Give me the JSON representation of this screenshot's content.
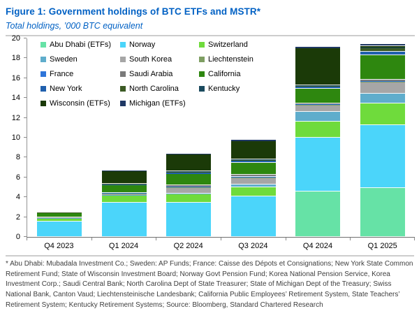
{
  "header": {
    "title": "Figure 1: Government holdings of BTC ETFs and MSTR*",
    "subtitle": "Total holdings, ’000 BTC equivalent"
  },
  "footnote": "* Abu Dhabi: Mubadala Investment Co.; Sweden: AP Funds; France: Caisse des Dépots et Consignations; New York State Common Retirement Fund; State of Wisconsin Investment Board; Norway Govt Pension Fund; Korea National Pension Service, Korea Investment Corp.; Saudi Central Bank; North Carolina Dept of State Treasurer; State of Michigan Dept of the Treasury; Swiss National Bank, Canton Vaud; Liechtensteinische Landesbank; California Public Employees’ Retirement System, State Teachers’ Retirement System; Kentucky Retirement Systems; Source: Bloomberg, Standard Chartered Research",
  "colors": {
    "title_blue": "#0161c4",
    "rule_gray": "#cdcdcd",
    "axis_gray": "#8a8a8a"
  },
  "chart_data": {
    "type": "bar",
    "stacked": true,
    "title": "Government holdings of BTC ETFs and MSTR",
    "ylabel": "'000 BTC equivalent",
    "xlabel": "",
    "ylim": [
      0,
      20
    ],
    "y_ticks": [
      0,
      2,
      4,
      6,
      8,
      10,
      12,
      14,
      16,
      18,
      20
    ],
    "grid": false,
    "legend_position": "top-left-inside",
    "categories": [
      "Q4 2023",
      "Q1 2024",
      "Q2 2024",
      "Q3 2024",
      "Q4 2024",
      "Q1 2025"
    ],
    "series": [
      {
        "name": "Abu Dhabi (ETFs)",
        "color": "#66e2a6",
        "values": [
          0,
          0,
          0,
          0,
          4.6,
          4.9
        ]
      },
      {
        "name": "Norway",
        "color": "#4bd5fa",
        "values": [
          1.55,
          3.45,
          3.45,
          4.1,
          5.4,
          6.35
        ]
      },
      {
        "name": "Switzerland",
        "color": "#6fdb3c",
        "values": [
          0.3,
          0.7,
          0.85,
          0.95,
          1.6,
          2.2
        ]
      },
      {
        "name": "Sweden",
        "color": "#5fadcc",
        "values": [
          0.05,
          0.05,
          0.1,
          0.3,
          1.0,
          1.0
        ]
      },
      {
        "name": "South Korea",
        "color": "#a6a6a6",
        "values": [
          0.1,
          0.1,
          0.55,
          0.6,
          0.65,
          1.1
        ]
      },
      {
        "name": "Liechtenstein",
        "color": "#7e9e62",
        "values": [
          0,
          0.05,
          0.05,
          0.05,
          0.05,
          0.05
        ]
      },
      {
        "name": "France",
        "color": "#2e75d9",
        "values": [
          0,
          0.05,
          0.05,
          0.05,
          0.05,
          0.05
        ]
      },
      {
        "name": "Saudi Arabia",
        "color": "#7a7a7a",
        "values": [
          0,
          0,
          0.15,
          0.2,
          0.1,
          0.15
        ]
      },
      {
        "name": "California",
        "color": "#2e870f",
        "values": [
          0.45,
          0.8,
          1.15,
          1.2,
          1.5,
          2.45
        ]
      },
      {
        "name": "New York",
        "color": "#2060ad",
        "values": [
          0,
          0.1,
          0.15,
          0.2,
          0.2,
          0.35
        ]
      },
      {
        "name": "North Carolina",
        "color": "#3c5a24",
        "values": [
          0.1,
          0.05,
          0.1,
          0.1,
          0.1,
          0.35
        ]
      },
      {
        "name": "Kentucky",
        "color": "#1a4a5e",
        "values": [
          0,
          0,
          0.05,
          0.05,
          0.05,
          0.05
        ]
      },
      {
        "name": "Wisconsin (ETFs)",
        "color": "#1b3a08",
        "values": [
          0,
          1.25,
          1.7,
          1.8,
          3.7,
          0.15
        ]
      },
      {
        "name": "Michigan (ETFs)",
        "color": "#1f3864",
        "values": [
          0,
          0.05,
          0.1,
          0.15,
          0.15,
          0.2
        ]
      }
    ]
  }
}
